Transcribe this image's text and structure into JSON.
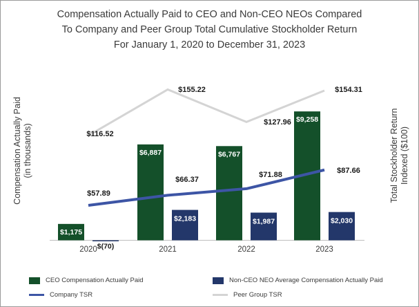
{
  "chart_data": {
    "type": "bar",
    "title": [
      "Compensation Actually Paid to CEO and Non-CEO NEOs Compared",
      "To Company and Peer Group Total Cumulative Stockholder Return",
      "For January 1, 2020 to December 31, 2023"
    ],
    "ylabel": [
      "Compensation Actually Paid",
      "(in thousands)"
    ],
    "y2label": [
      "Total Stockholder Return",
      "Indexed ($100)"
    ],
    "categories": [
      "2020",
      "2021",
      "2022",
      "2023"
    ],
    "ylim": [
      -200,
      10000
    ],
    "y2lim": [
      40,
      170
    ],
    "series": [
      {
        "name": "CEO Compensation Actually Paid",
        "type": "bar",
        "color": "#14502a",
        "values": [
          1175,
          6887,
          6767,
          9258
        ],
        "labels": [
          "$1,175",
          "$6,887",
          "$6,767",
          "$9,258"
        ]
      },
      {
        "name": "Non-CEO NEO Average Compensation Actually Paid",
        "type": "bar",
        "color": "#23376a",
        "values": [
          -70,
          2183,
          1987,
          2030
        ],
        "labels": [
          "$(70)",
          "$2,183",
          "$1,987",
          "$2,030"
        ]
      },
      {
        "name": "Company TSR",
        "type": "line",
        "axis": "right",
        "color": "#3d55a5",
        "values": [
          57.89,
          66.37,
          71.88,
          87.66
        ],
        "labels": [
          "$57.89",
          "$66.37",
          "$71.88",
          "$87.66"
        ]
      },
      {
        "name": "Peer Group TSR",
        "type": "line",
        "axis": "right",
        "color": "#d4d4d4",
        "values": [
          116.52,
          155.22,
          127.96,
          154.31
        ],
        "labels": [
          "$116.52",
          "$155.22",
          "$127.96",
          "$154.31"
        ]
      }
    ]
  }
}
